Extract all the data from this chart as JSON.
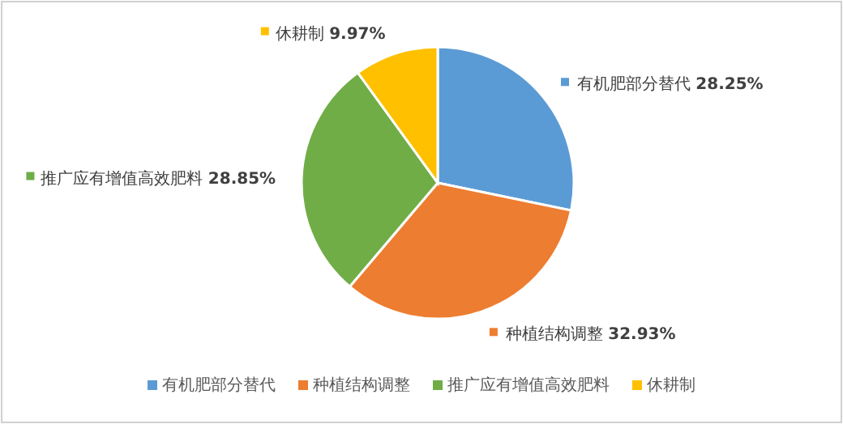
{
  "chart_data": {
    "type": "pie",
    "categories": [
      "有机肥部分替代",
      "种植结构调整",
      "推广应有增值高效肥料",
      "休耕制"
    ],
    "values": [
      28.25,
      32.93,
      28.85,
      9.97
    ],
    "colors": [
      "#5b9bd5",
      "#ed7d31",
      "#70ad47",
      "#ffc000"
    ],
    "value_labels": [
      "28.25%",
      "32.93%",
      "28.85%",
      "9.97%"
    ],
    "legend": "bottom"
  }
}
